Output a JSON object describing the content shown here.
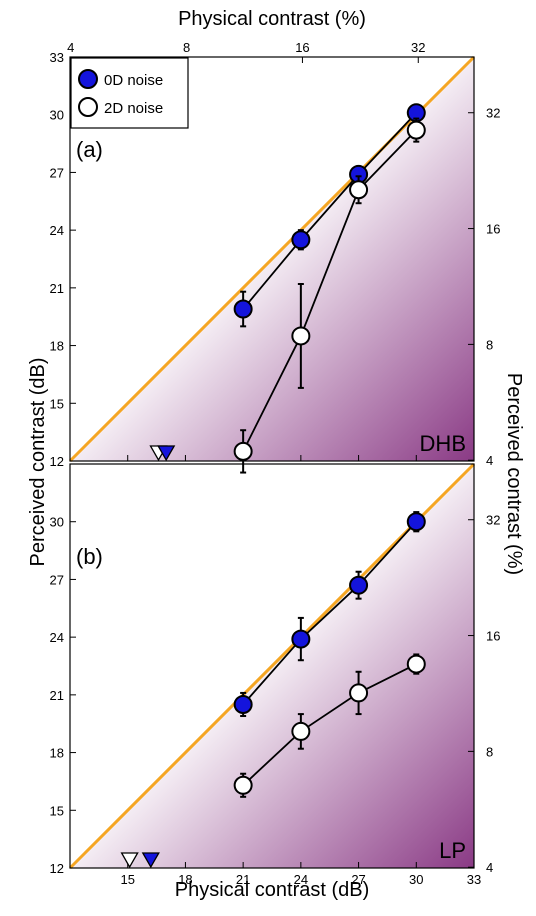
{
  "chart_data": [
    {
      "type": "scatter",
      "panel_label": "(a)",
      "observer": "DHB",
      "xlabel_top": "Physical contrast (%)",
      "ylabel_left": "Perceived contrast (dB)",
      "ylabel_right": "Perceived contrast (%)",
      "xlim": [
        12,
        33
      ],
      "ylim": [
        12,
        33
      ],
      "x_ticks_top": [
        "4",
        "8",
        "16",
        "32"
      ],
      "y_ticks_left": [
        "12",
        "15",
        "18",
        "21",
        "24",
        "27",
        "30",
        "33"
      ],
      "y_ticks_right": [
        "4",
        "8",
        "16",
        "32"
      ],
      "identity_line": true,
      "identity_line_color": "#f5a623",
      "background_gradient": [
        "#ffffff",
        "#8a3a85"
      ],
      "series": [
        {
          "name": "0D noise",
          "color": "#1414dc",
          "x": [
            21,
            24,
            27,
            30
          ],
          "y": [
            19.9,
            23.5,
            26.9,
            30.1
          ],
          "err": [
            0.9,
            0.5,
            0.4,
            0.4
          ],
          "threshold_x": 17.0
        },
        {
          "name": "2D noise",
          "color": "#ffffff",
          "x": [
            21,
            24,
            27,
            30
          ],
          "y": [
            12.5,
            18.5,
            26.1,
            29.2
          ],
          "err": [
            1.1,
            2.7,
            0.7,
            0.6
          ],
          "threshold_x": 16.6
        }
      ]
    },
    {
      "type": "scatter",
      "panel_label": "(b)",
      "observer": "LP",
      "xlabel": "Physical contrast (dB)",
      "ylabel_left": "Perceived contrast (dB)",
      "ylabel_right": "Perceived contrast (%)",
      "xlim": [
        12,
        33
      ],
      "ylim": [
        12,
        33
      ],
      "x_ticks_bottom": [
        "15",
        "18",
        "21",
        "24",
        "27",
        "30",
        "33"
      ],
      "y_ticks_left": [
        "12",
        "15",
        "18",
        "21",
        "24",
        "27",
        "30"
      ],
      "y_ticks_right": [
        "4",
        "8",
        "16",
        "32"
      ],
      "identity_line": true,
      "identity_line_color": "#f5a623",
      "background_gradient": [
        "#ffffff",
        "#8a3a85"
      ],
      "series": [
        {
          "name": "0D noise",
          "color": "#1414dc",
          "x": [
            21,
            24,
            27,
            30
          ],
          "y": [
            20.5,
            23.9,
            26.7,
            30.0
          ],
          "err": [
            0.6,
            1.1,
            0.7,
            0.5
          ],
          "threshold_x": 16.2
        },
        {
          "name": "2D noise",
          "color": "#ffffff",
          "x": [
            21,
            24,
            27,
            30
          ],
          "y": [
            16.3,
            19.1,
            21.1,
            22.6
          ],
          "err": [
            0.6,
            0.9,
            1.1,
            0.5
          ],
          "threshold_x": 15.1
        }
      ]
    }
  ]
}
